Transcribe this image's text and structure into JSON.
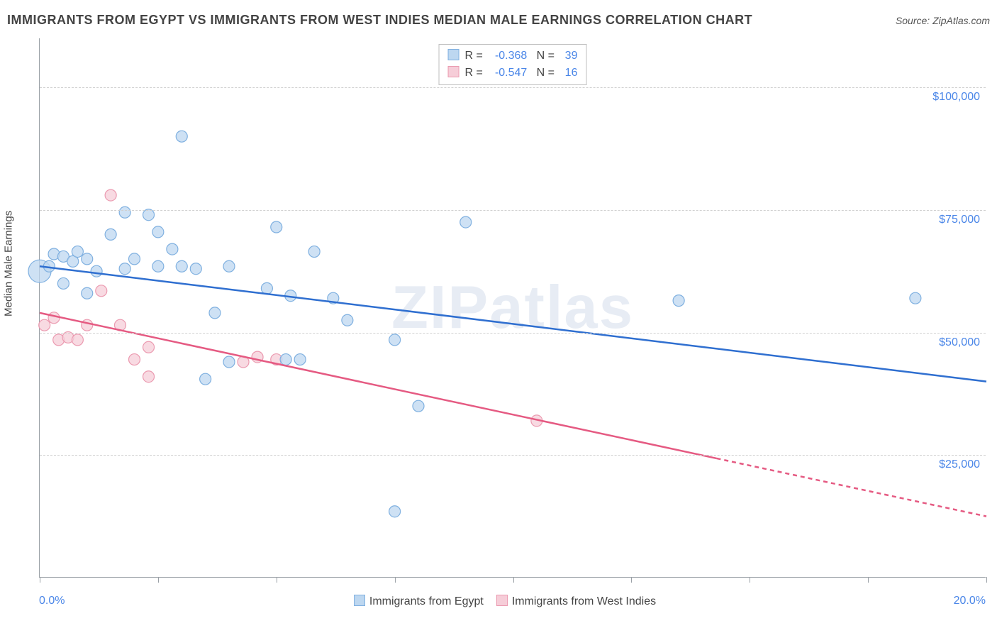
{
  "title": "IMMIGRANTS FROM EGYPT VS IMMIGRANTS FROM WEST INDIES MEDIAN MALE EARNINGS CORRELATION CHART",
  "source": "Source: ZipAtlas.com",
  "watermark": "ZIPatlas",
  "y_label": "Median Male Earnings",
  "chart": {
    "type": "scatter",
    "xlim": [
      0,
      20
    ],
    "ylim": [
      0,
      110000
    ],
    "x_ticks": [
      0,
      2.5,
      5,
      7.5,
      10,
      12.5,
      15,
      17.5,
      20
    ],
    "y_gridlines": [
      25000,
      50000,
      75000,
      100000
    ],
    "y_tick_labels": [
      "$25,000",
      "$50,000",
      "$75,000",
      "$100,000"
    ],
    "x_range_labels": [
      "0.0%",
      "20.0%"
    ],
    "background_color": "#ffffff",
    "grid_color": "#d0d0d0",
    "axis_color": "#9aa0a6",
    "marker_radius": 8,
    "marker_stroke_width": 1.2,
    "trendline_width": 2.5
  },
  "series": {
    "egypt": {
      "label": "Immigrants from Egypt",
      "fill": "#bdd7f0",
      "stroke": "#7fb0e0",
      "line_color": "#2f6fd0",
      "R": "-0.368",
      "N": "39",
      "trend": {
        "x1": 0,
        "y1": 63500,
        "x2": 20,
        "y2": 40000
      },
      "points": [
        [
          0.0,
          62500,
          16
        ],
        [
          0.2,
          63500,
          8
        ],
        [
          0.3,
          66000,
          8
        ],
        [
          0.5,
          60000,
          8
        ],
        [
          0.5,
          65500,
          8
        ],
        [
          0.7,
          64500,
          8
        ],
        [
          0.8,
          66500,
          8
        ],
        [
          1.0,
          65000,
          8
        ],
        [
          1.0,
          58000,
          8
        ],
        [
          1.2,
          62500,
          8
        ],
        [
          1.5,
          70000,
          8
        ],
        [
          1.8,
          63000,
          8
        ],
        [
          1.8,
          74500,
          8
        ],
        [
          2.0,
          65000,
          8
        ],
        [
          2.3,
          74000,
          8
        ],
        [
          2.5,
          63500,
          8
        ],
        [
          2.5,
          70500,
          8
        ],
        [
          2.8,
          67000,
          8
        ],
        [
          3.0,
          63500,
          8
        ],
        [
          3.0,
          90000,
          8
        ],
        [
          3.3,
          63000,
          8
        ],
        [
          3.5,
          40500,
          8
        ],
        [
          3.7,
          54000,
          8
        ],
        [
          4.0,
          44000,
          8
        ],
        [
          4.0,
          63500,
          8
        ],
        [
          4.8,
          59000,
          8
        ],
        [
          5.0,
          71500,
          8
        ],
        [
          5.2,
          44500,
          8
        ],
        [
          5.3,
          57500,
          8
        ],
        [
          5.5,
          44500,
          8
        ],
        [
          5.8,
          66500,
          8
        ],
        [
          6.2,
          57000,
          8
        ],
        [
          6.5,
          52500,
          8
        ],
        [
          7.5,
          48500,
          8
        ],
        [
          7.5,
          13500,
          8
        ],
        [
          8.0,
          35000,
          8
        ],
        [
          9.0,
          72500,
          8
        ],
        [
          13.5,
          56500,
          8
        ],
        [
          18.5,
          57000,
          8
        ]
      ]
    },
    "west_indies": {
      "label": "Immigrants from West Indies",
      "fill": "#f6cdd8",
      "stroke": "#eb9ab0",
      "line_color": "#e55a82",
      "R": "-0.547",
      "N": "16",
      "trend": {
        "x1": 0,
        "y1": 54000,
        "x2": 20,
        "y2": 12500
      },
      "trend_solid_end_x": 14.3,
      "points": [
        [
          0.1,
          51500,
          8
        ],
        [
          0.3,
          53000,
          8
        ],
        [
          0.4,
          48500,
          8
        ],
        [
          0.6,
          49000,
          8
        ],
        [
          0.8,
          48500,
          8
        ],
        [
          1.0,
          51500,
          8
        ],
        [
          1.3,
          58500,
          8
        ],
        [
          1.5,
          78000,
          8
        ],
        [
          1.7,
          51500,
          8
        ],
        [
          2.0,
          44500,
          8
        ],
        [
          2.3,
          47000,
          8
        ],
        [
          2.3,
          41000,
          8
        ],
        [
          4.3,
          44000,
          8
        ],
        [
          4.6,
          45000,
          8
        ],
        [
          5.0,
          44500,
          8
        ],
        [
          10.5,
          32000,
          8
        ]
      ]
    }
  },
  "stats_box": {
    "r_label": "R =",
    "n_label": "N ="
  }
}
